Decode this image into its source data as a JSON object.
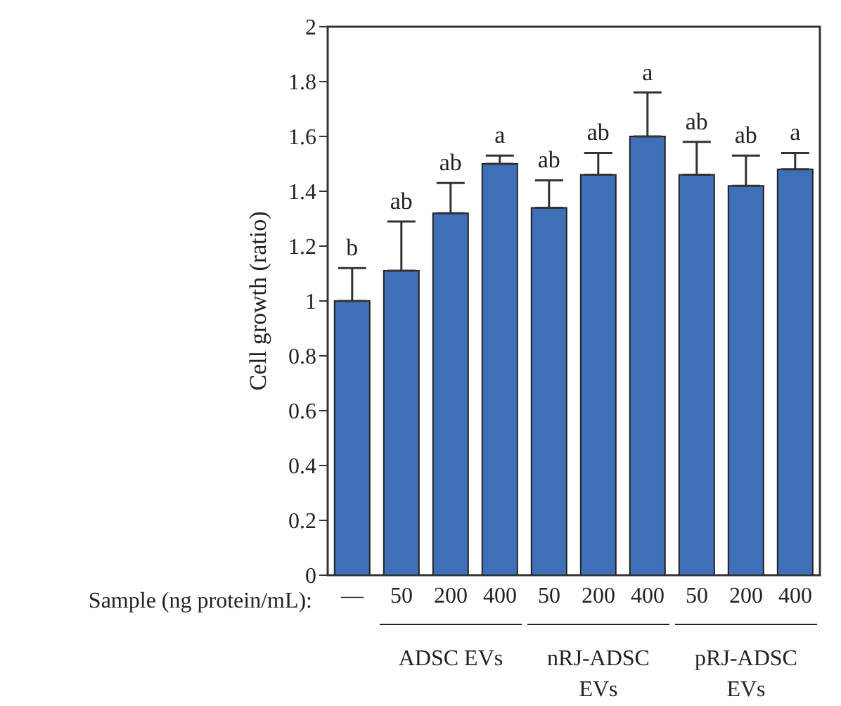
{
  "chart_data": {
    "type": "bar",
    "ylabel": "Cell growth (ratio)",
    "xlabel": "Sample (ng protein/mL):",
    "categories": [
      "—",
      "50",
      "200",
      "400",
      "50",
      "200",
      "400",
      "50",
      "200",
      "400"
    ],
    "values": [
      1.0,
      1.11,
      1.32,
      1.5,
      1.34,
      1.46,
      1.6,
      1.46,
      1.42,
      1.48
    ],
    "errors": [
      [
        1.0,
        1.12
      ],
      [
        1.11,
        1.29
      ],
      [
        1.32,
        1.43
      ],
      [
        1.5,
        1.53
      ],
      [
        1.34,
        1.44
      ],
      [
        1.46,
        1.54
      ],
      [
        1.6,
        1.76
      ],
      [
        1.46,
        1.58
      ],
      [
        1.42,
        1.53
      ],
      [
        1.48,
        1.54
      ]
    ],
    "color": "#3f6fb7",
    "ylim": [
      0,
      2
    ],
    "yticks": [
      0,
      0.2,
      0.4,
      0.6,
      0.8,
      1,
      1.2,
      1.4,
      1.6,
      1.8,
      2
    ],
    "annotations": [
      "b",
      "ab",
      "ab",
      "a",
      "ab",
      "ab",
      "a",
      "ab",
      "ab",
      "a",
      "ADSC EVs",
      "nRJ-ADSC EVs",
      "pRJ-ADSC EVs"
    ]
  }
}
